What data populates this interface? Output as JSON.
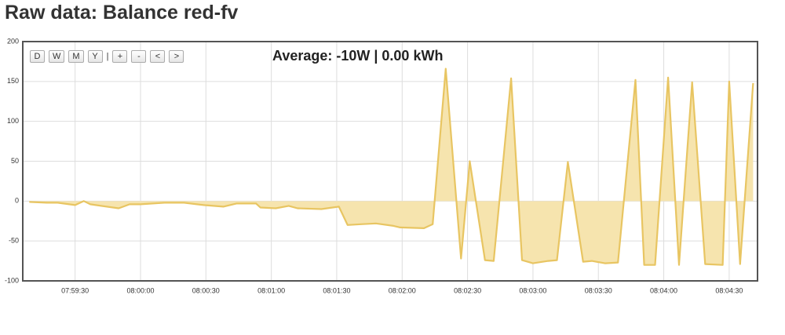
{
  "page_title": "Raw data: Balance red-fv",
  "controls": {
    "buttons": [
      "D",
      "W",
      "M",
      "Y"
    ],
    "separator": "|",
    "nav_buttons": [
      "+",
      "-",
      "<",
      ">"
    ]
  },
  "chart_data": {
    "type": "area",
    "annotation": "Average: -10W | 0.00 kWh",
    "color": "#e8c562",
    "fill": "#f6e4ae",
    "grid": true,
    "xlim": [
      28746,
      29083
    ],
    "ylim": [
      -100,
      200
    ],
    "yticks": [
      -100,
      -50,
      0,
      50,
      100,
      150,
      200
    ],
    "xticks": [
      {
        "value": 28770,
        "label": "07:59:30"
      },
      {
        "value": 28800,
        "label": "08:00:00"
      },
      {
        "value": 28830,
        "label": "08:00:30"
      },
      {
        "value": 28860,
        "label": "08:01:00"
      },
      {
        "value": 28890,
        "label": "08:01:30"
      },
      {
        "value": 28920,
        "label": "08:02:00"
      },
      {
        "value": 28950,
        "label": "08:02:30"
      },
      {
        "value": 28980,
        "label": "08:03:00"
      },
      {
        "value": 29010,
        "label": "08:03:30"
      },
      {
        "value": 29040,
        "label": "08:04:00"
      },
      {
        "value": 29070,
        "label": "08:04:30"
      }
    ],
    "x": [
      28749,
      28757,
      28762,
      28770,
      28774,
      28777,
      28790,
      28795,
      28800,
      28811,
      28820,
      28829,
      28838,
      28844,
      28853,
      28855,
      28862,
      28868,
      28872,
      28883,
      28891,
      28895,
      28901,
      28908,
      28916,
      28919,
      28930,
      28934,
      28940,
      28947,
      28951,
      28958,
      28962,
      28970,
      28975,
      28980,
      28987,
      28991,
      28996,
      29003,
      29007,
      29013,
      29019,
      29027,
      29031,
      29036,
      29042,
      29047,
      29053,
      29059,
      29067,
      29070,
      29075,
      29081
    ],
    "values": [
      -1,
      -2,
      -2,
      -5,
      0,
      -4,
      -9,
      -4,
      -4,
      -2,
      -2,
      -5,
      -7,
      -3,
      -3,
      -8,
      -9,
      -6,
      -9,
      -10,
      -7,
      -30,
      -29,
      -28,
      -31,
      -33,
      -34,
      -29,
      166,
      -72,
      50,
      -74,
      -75,
      154,
      -74,
      -78,
      -75,
      -74,
      49,
      -76,
      -75,
      -78,
      -77,
      152,
      -80,
      -80,
      155,
      -80,
      149,
      -79,
      -80,
      150,
      -79,
      148
    ]
  }
}
